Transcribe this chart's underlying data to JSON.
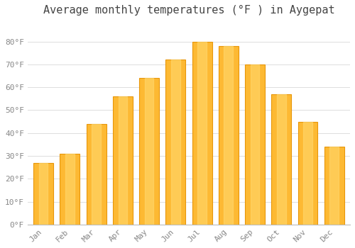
{
  "title": "Average monthly temperatures (°F ) in Aygepat",
  "months": [
    "Jan",
    "Feb",
    "Mar",
    "Apr",
    "May",
    "Jun",
    "Jul",
    "Aug",
    "Sep",
    "Oct",
    "Nov",
    "Dec"
  ],
  "values": [
    27,
    31,
    44,
    56,
    64,
    72,
    80,
    78,
    70,
    57,
    45,
    34
  ],
  "bar_color_face": "#FDB933",
  "bar_edge_color": "#E8960A",
  "background_color": "#FFFFFF",
  "plot_bg_color": "#FFFFFF",
  "grid_color": "#DDDDDD",
  "tick_label_color": "#888888",
  "title_color": "#444444",
  "ylim": [
    0,
    88
  ],
  "yticks": [
    0,
    10,
    20,
    30,
    40,
    50,
    60,
    70,
    80
  ],
  "ytick_labels": [
    "0°F",
    "10°F",
    "20°F",
    "30°F",
    "40°F",
    "50°F",
    "60°F",
    "70°F",
    "80°F"
  ],
  "title_fontsize": 11,
  "tick_fontsize": 8,
  "font_family": "monospace",
  "bar_width": 0.75
}
